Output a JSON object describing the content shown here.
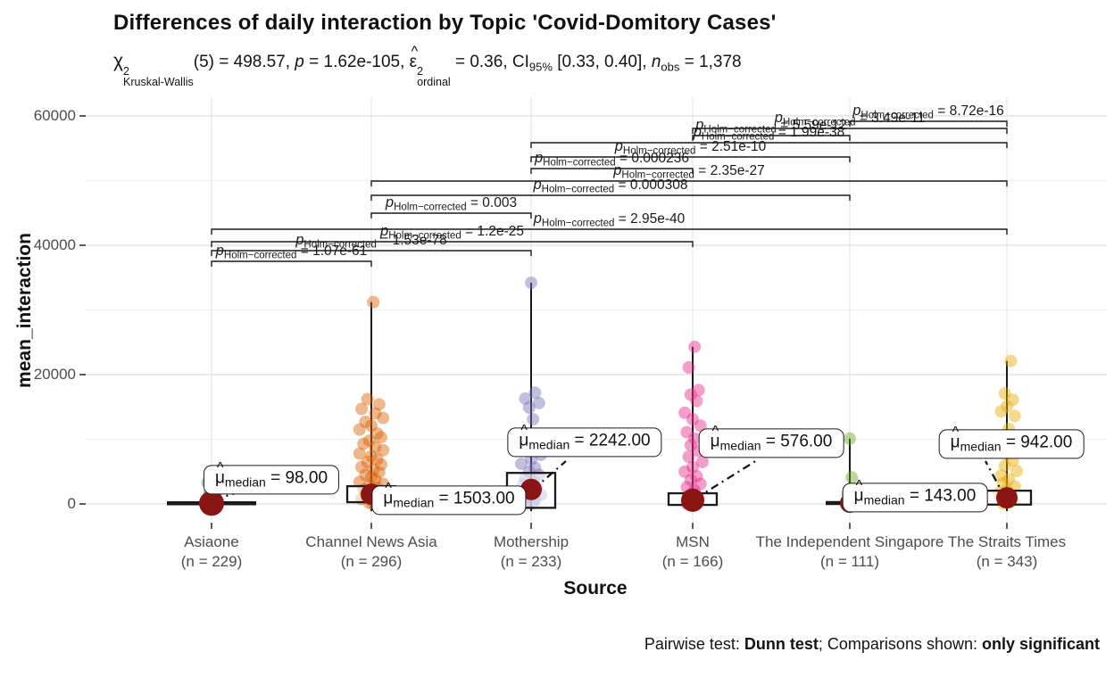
{
  "title": "Differences of daily interaction by Topic 'Covid-Domitory Cases'",
  "subtitle": {
    "chi": "χ",
    "chi_sup": "2",
    "chi_sub": "Kruskal-Wallis",
    "s1": "(5) = 498.57, ",
    "p": "p",
    "s2": " = 1.62e-105, ",
    "eps": "ε",
    "hat": "^",
    "eps_sup": "2",
    "eps_sub": "ordinal",
    "s3": " = 0.36, CI",
    "ci_sub": "95%",
    "s4": " [0.33, 0.40], ",
    "n": "n",
    "n_sub": "obs",
    "s5": " = 1,378"
  },
  "y_axis": {
    "title": "mean_interaction",
    "ticks": [
      "0",
      "20000",
      "40000",
      "60000"
    ],
    "tick_values": [
      0,
      20000,
      40000,
      60000
    ]
  },
  "x_axis": {
    "title": "Source"
  },
  "caption": {
    "s1": "Pairwise test: ",
    "b1": "Dunn test",
    "s2": "; Comparisons shown: ",
    "b2": "only significant"
  },
  "median_label_parts": {
    "hat": "^",
    "mu": "μ",
    "sub": "median",
    "eq": " = "
  },
  "p_label_parts": {
    "p": "p",
    "sub": "Holm−corrected",
    "eq": " = "
  },
  "chart_data": {
    "type": "scatter",
    "subtype": "jittered points + boxplot + median highlight (ggbetweenstats)",
    "ylabel": "mean_interaction",
    "xlabel": "Source",
    "ylim": [
      0,
      60000
    ],
    "grid": true,
    "median_point_color": "#8B1414",
    "groups": [
      {
        "name": "Asiaone",
        "n_label": "(n = 229)",
        "n": 229,
        "color": "#1B9E77",
        "median": 98,
        "median_label": "98.00",
        "whisker_top": null,
        "crossbar": true,
        "box": null,
        "points": [
          [
            -2,
            3300
          ],
          [
            1,
            2500
          ],
          [
            -1,
            1800
          ],
          [
            2,
            1200
          ],
          [
            0,
            700
          ],
          [
            -3,
            350
          ],
          [
            3,
            150
          ],
          [
            -1,
            60
          ],
          [
            1,
            20
          ],
          [
            0,
            5
          ]
        ]
      },
      {
        "name": "Channel News Asia",
        "n_label": "(n = 296)",
        "n": 296,
        "color": "#D95F02",
        "median": 1503,
        "median_label": "1503.00",
        "whisker_top": 31200,
        "crossbar": false,
        "box": [
          270,
          2750
        ],
        "points": [
          [
            1,
            31200
          ],
          [
            -2,
            16200
          ],
          [
            4,
            15400
          ],
          [
            -5,
            14700
          ],
          [
            2,
            14000
          ],
          [
            6,
            13300
          ],
          [
            -3,
            12700
          ],
          [
            0,
            12100
          ],
          [
            -6,
            11500
          ],
          [
            3,
            10900
          ],
          [
            5,
            10300
          ],
          [
            -1,
            9800
          ],
          [
            -4,
            9300
          ],
          [
            2,
            8800
          ],
          [
            6,
            8300
          ],
          [
            -6,
            7800
          ],
          [
            0,
            7400
          ],
          [
            3,
            6900
          ],
          [
            -2,
            6500
          ],
          [
            5,
            6100
          ],
          [
            -5,
            5700
          ],
          [
            1,
            5300
          ],
          [
            4,
            4900
          ],
          [
            -3,
            4500
          ],
          [
            0,
            4100
          ],
          [
            2,
            3800
          ],
          [
            -6,
            3400
          ],
          [
            6,
            3100
          ],
          [
            -1,
            2800
          ],
          [
            3,
            2500
          ],
          [
            -4,
            2200
          ],
          [
            1,
            1900
          ],
          [
            5,
            1600
          ],
          [
            -2,
            1300
          ],
          [
            0,
            1000
          ],
          [
            -5,
            750
          ],
          [
            2,
            500
          ],
          [
            4,
            300
          ],
          [
            -1,
            150
          ],
          [
            1,
            50
          ]
        ]
      },
      {
        "name": "Mothership",
        "n_label": "(n = 233)",
        "n": 233,
        "color": "#7570B3",
        "median": 2242,
        "median_label": "2242.00",
        "whisker_top": 34200,
        "crossbar": false,
        "box": [
          -600,
          4800
        ],
        "points": [
          [
            0,
            34200
          ],
          [
            2,
            17200
          ],
          [
            -3,
            16300
          ],
          [
            4,
            15600
          ],
          [
            -1,
            14900
          ],
          [
            1,
            13100
          ],
          [
            -4,
            10200
          ],
          [
            3,
            9300
          ],
          [
            -2,
            8400
          ],
          [
            5,
            7600
          ],
          [
            0,
            6900
          ],
          [
            -5,
            6200
          ],
          [
            2,
            5600
          ],
          [
            -1,
            5000
          ],
          [
            4,
            4500
          ],
          [
            -3,
            4000
          ],
          [
            1,
            3500
          ],
          [
            -4,
            3000
          ],
          [
            3,
            2600
          ],
          [
            0,
            2200
          ],
          [
            -2,
            1800
          ],
          [
            5,
            1400
          ],
          [
            -1,
            1000
          ],
          [
            2,
            650
          ],
          [
            -3,
            350
          ],
          [
            1,
            120
          ]
        ]
      },
      {
        "name": "MSN",
        "n_label": "(n = 166)",
        "n": 166,
        "color": "#E7298A",
        "median": 576,
        "median_label": "576.00",
        "whisker_top": 24300,
        "crossbar": false,
        "box": [
          -150,
          1650
        ],
        "points": [
          [
            1,
            24300
          ],
          [
            -2,
            21100
          ],
          [
            3,
            17600
          ],
          [
            -1,
            16900
          ],
          [
            2,
            15900
          ],
          [
            -4,
            14100
          ],
          [
            0,
            13100
          ],
          [
            4,
            12100
          ],
          [
            -3,
            11100
          ],
          [
            1,
            10100
          ],
          [
            -1,
            9100
          ],
          [
            3,
            8200
          ],
          [
            -2,
            7300
          ],
          [
            5,
            6500
          ],
          [
            0,
            5700
          ],
          [
            -4,
            5000
          ],
          [
            2,
            4300
          ],
          [
            -1,
            3700
          ],
          [
            4,
            3100
          ],
          [
            -3,
            2600
          ],
          [
            1,
            2100
          ],
          [
            0,
            1700
          ],
          [
            -2,
            1300
          ],
          [
            3,
            900
          ],
          [
            -1,
            500
          ],
          [
            2,
            200
          ],
          [
            -3,
            80
          ]
        ]
      },
      {
        "name": "The Independent Singapore",
        "n_label": "(n = 111)",
        "n": 111,
        "color": "#66A61E",
        "median": 143,
        "median_label": "143.00",
        "whisker_top": 10100,
        "crossbar": true,
        "box": null,
        "points": [
          [
            0,
            10100
          ],
          [
            1,
            4100
          ],
          [
            -1,
            1600
          ],
          [
            2,
            800
          ],
          [
            0,
            350
          ],
          [
            -2,
            120
          ],
          [
            1,
            40
          ]
        ]
      },
      {
        "name": "The Straits Times",
        "n_label": "(n = 343)",
        "n": 343,
        "color": "#E6AB02",
        "median": 942,
        "median_label": "942.00",
        "whisker_top": 22100,
        "crossbar": false,
        "box": [
          -100,
          2050
        ],
        "points": [
          [
            2,
            22100
          ],
          [
            -1,
            17100
          ],
          [
            3,
            16100
          ],
          [
            0,
            15100
          ],
          [
            -3,
            14300
          ],
          [
            4,
            13600
          ],
          [
            1,
            11600
          ],
          [
            -2,
            10600
          ],
          [
            2,
            9600
          ],
          [
            -4,
            8600
          ],
          [
            0,
            7700
          ],
          [
            3,
            6700
          ],
          [
            -1,
            5900
          ],
          [
            5,
            5100
          ],
          [
            -3,
            4400
          ],
          [
            1,
            3800
          ],
          [
            -2,
            3200
          ],
          [
            4,
            2700
          ],
          [
            0,
            2200
          ],
          [
            -4,
            1700
          ],
          [
            2,
            1300
          ],
          [
            -1,
            900
          ],
          [
            3,
            500
          ],
          [
            1,
            200
          ],
          [
            -2,
            60
          ]
        ]
      }
    ],
    "comparisons": [
      {
        "from": "Asiaone",
        "to": "Channel News Asia",
        "i": 0,
        "j": 1,
        "p": "1.07e-61"
      },
      {
        "from": "Asiaone",
        "to": "Mothership",
        "i": 0,
        "j": 2,
        "p": "1.53e-78"
      },
      {
        "from": "Asiaone",
        "to": "MSN",
        "i": 0,
        "j": 3,
        "p": "1.2e-25"
      },
      {
        "from": "Asiaone",
        "to": "The Straits Times",
        "i": 0,
        "j": 5,
        "p": "2.95e-40"
      },
      {
        "from": "Channel News Asia",
        "to": "Mothership",
        "i": 1,
        "j": 2,
        "p": "0.003"
      },
      {
        "from": "Channel News Asia",
        "to": "The Independent Singapore",
        "i": 1,
        "j": 4,
        "p": "0.000308"
      },
      {
        "from": "Channel News Asia",
        "to": "The Straits Times",
        "i": 1,
        "j": 5,
        "p": "2.35e-27"
      },
      {
        "from": "Mothership",
        "to": "MSN",
        "i": 2,
        "j": 3,
        "p": "0.000236"
      },
      {
        "from": "Mothership",
        "to": "The Independent Singapore",
        "i": 2,
        "j": 4,
        "p": "2.51e-10"
      },
      {
        "from": "Mothership",
        "to": "The Straits Times",
        "i": 2,
        "j": 5,
        "p": "1.99e-38"
      },
      {
        "from": "MSN",
        "to": "The Independent Singapore",
        "i": 3,
        "j": 4,
        "p": "5.59e-12"
      },
      {
        "from": "MSN",
        "to": "The Straits Times",
        "i": 3,
        "j": 5,
        "p": "3.49e-11"
      },
      {
        "from": "The Independent Singapore",
        "to": "The Straits Times",
        "i": 4,
        "j": 5,
        "p": "8.72e-16"
      }
    ]
  }
}
